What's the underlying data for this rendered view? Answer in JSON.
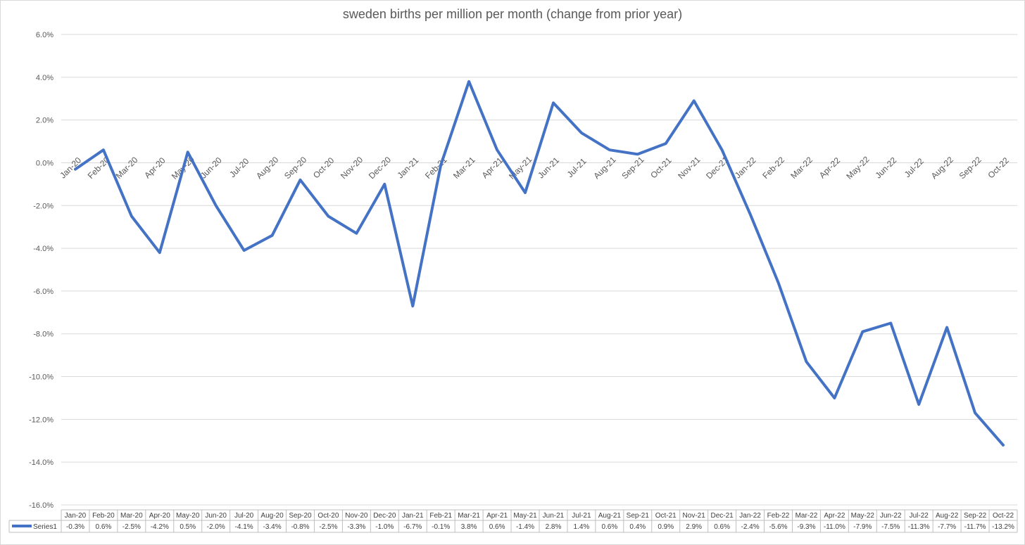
{
  "chart_data": {
    "type": "line",
    "title": "sweden births per million per month (change from prior year)",
    "xlabel": "",
    "ylabel": "",
    "ylim": [
      -16,
      6
    ],
    "y_ticks": [
      "6.0%",
      "4.0%",
      "2.0%",
      "0.0%",
      "-2.0%",
      "-4.0%",
      "-6.0%",
      "-8.0%",
      "-10.0%",
      "-12.0%",
      "-14.0%",
      "-16.0%"
    ],
    "grid": true,
    "legend": "data-table-left",
    "categories": [
      "Jan-20",
      "Feb-20",
      "Mar-20",
      "Apr-20",
      "May-20",
      "Jun-20",
      "Jul-20",
      "Aug-20",
      "Sep-20",
      "Oct-20",
      "Nov-20",
      "Dec-20",
      "Jan-21",
      "Feb-21",
      "Mar-21",
      "Apr-21",
      "May-21",
      "Jun-21",
      "Jul-21",
      "Aug-21",
      "Sep-21",
      "Oct-21",
      "Nov-21",
      "Dec-21",
      "Jan-22",
      "Feb-22",
      "Mar-22",
      "Apr-22",
      "May-22",
      "Jun-22",
      "Jul-22",
      "Aug-22",
      "Sep-22",
      "Oct-22"
    ],
    "series": [
      {
        "name": "Series1",
        "color": "#4472c4",
        "values": [
          -0.3,
          0.6,
          -2.5,
          -4.2,
          0.5,
          -2.0,
          -4.1,
          -3.4,
          -0.8,
          -2.5,
          -3.3,
          -1.0,
          -6.7,
          -0.1,
          3.8,
          0.6,
          -1.4,
          2.8,
          1.4,
          0.6,
          0.4,
          0.9,
          2.9,
          0.6,
          -2.4,
          -5.6,
          -9.3,
          -11.0,
          -7.9,
          -7.5,
          -11.3,
          -7.7,
          -11.7,
          -13.2
        ],
        "labels": [
          "-0.3%",
          "0.6%",
          "-2.5%",
          "-4.2%",
          "0.5%",
          "-2.0%",
          "-4.1%",
          "-3.4%",
          "-0.8%",
          "-2.5%",
          "-3.3%",
          "-1.0%",
          "-6.7%",
          "-0.1%",
          "3.8%",
          "0.6%",
          "-1.4%",
          "2.8%",
          "1.4%",
          "0.6%",
          "0.4%",
          "0.9%",
          "2.9%",
          "0.6%",
          "-2.4%",
          "-5.6%",
          "-9.3%",
          "-11.0%",
          "-7.9%",
          "-7.5%",
          "-11.3%",
          "-7.7%",
          "-11.7%",
          "-13.2%"
        ]
      }
    ]
  }
}
